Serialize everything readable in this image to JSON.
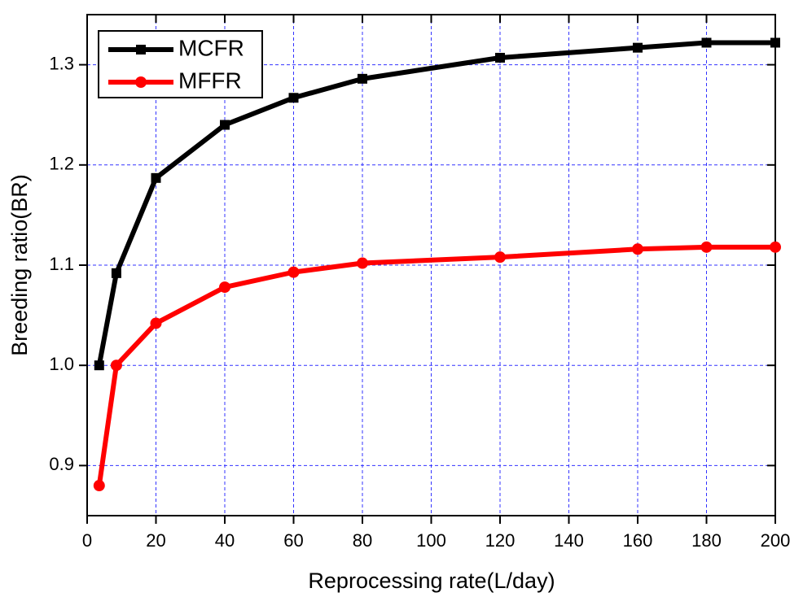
{
  "chart_data": {
    "type": "line",
    "x_label": "Reprocessing rate(L/day)",
    "y_label": "Breeding ratio(BR)",
    "x": [
      3.5,
      8.5,
      20,
      40,
      60,
      80,
      120,
      160,
      180,
      200
    ],
    "series": [
      {
        "name": "MCFR",
        "color": "#000000",
        "marker": "square",
        "values": [
          1.0,
          1.092,
          1.187,
          1.24,
          1.267,
          1.286,
          1.307,
          1.317,
          1.322,
          1.322
        ]
      },
      {
        "name": "MFFR",
        "color": "#ff0000",
        "marker": "circle",
        "values": [
          0.88,
          1.0,
          1.042,
          1.078,
          1.093,
          1.102,
          1.108,
          1.116,
          1.118,
          1.118
        ]
      }
    ],
    "xlim": [
      0,
      200
    ],
    "ylim": [
      0.85,
      1.35
    ],
    "xticks": [
      0,
      20,
      40,
      60,
      80,
      100,
      120,
      140,
      160,
      180,
      200
    ],
    "yticks": [
      0.9,
      {
        "value": 1,
        "label": "1.0"
      },
      1.1,
      1.2,
      1.3
    ],
    "grid": true,
    "grid_color": "#3333ff",
    "legend": "upper left"
  }
}
